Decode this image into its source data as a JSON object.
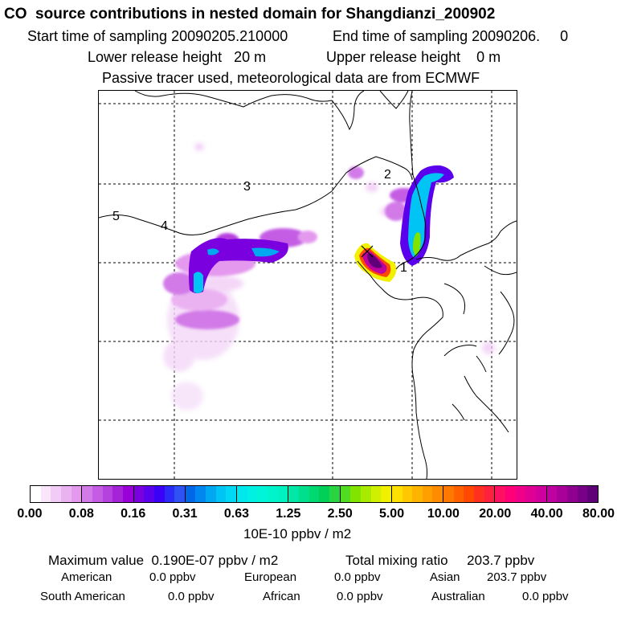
{
  "header": {
    "title": "CO  source contributions in nested domain for Shangdianzi_200902",
    "start_sampling": "Start time of sampling 20090205.210000",
    "end_sampling": "End time of sampling 20090206.     0",
    "lower_release": "Lower release height   20 m",
    "upper_release": "Upper release height    0 m",
    "tracer_note": "Passive tracer used, meteorological data are from ECMWF"
  },
  "map": {
    "region_labels": [
      "1",
      "2",
      "3",
      "4",
      "5"
    ],
    "receptor_marker": "x"
  },
  "colorbar": {
    "ticks": [
      "0.00",
      "0.08",
      "0.16",
      "0.31",
      "0.63",
      "1.25",
      "2.50",
      "5.00",
      "10.00",
      "20.00",
      "40.00",
      "80.00"
    ],
    "unit_label": "10E-10 ppbv / m2",
    "groups": [
      [
        "#ffffff",
        "#f9e6fa",
        "#f2ccf6",
        "#ebb2f2",
        "#e499ee"
      ],
      [
        "#d27ae8",
        "#c45de4",
        "#b541de",
        "#a524da",
        "#9b00d8"
      ],
      [
        "#7a00e0",
        "#5a00ec",
        "#3b00f6",
        "#2a2bf6",
        "#2e52f4"
      ],
      [
        "#0068e8",
        "#0088f0",
        "#00a8f2",
        "#00c4f4",
        "#00d8f4"
      ],
      [
        "#00e8ee",
        "#00f0e4",
        "#00f4d8",
        "#00f4cc",
        "#00f2c0"
      ],
      [
        "#00e8a8",
        "#00e08c",
        "#00d870",
        "#00d058",
        "#28d440"
      ],
      [
        "#50dc20",
        "#80e400",
        "#a8ea00",
        "#cff000",
        "#f0f000"
      ],
      [
        "#ffe000",
        "#ffc800",
        "#ffb400",
        "#ffa000",
        "#ff8c00"
      ],
      [
        "#ff7800",
        "#ff6000",
        "#ff4800",
        "#ff3020",
        "#ff2040"
      ],
      [
        "#ff1060",
        "#ff0078",
        "#f00088",
        "#e00094",
        "#d0009c"
      ],
      [
        "#c000a0",
        "#a80098",
        "#900090",
        "#780088",
        "#600078"
      ]
    ]
  },
  "summary": {
    "max_value": "Maximum value  0.190E-07 ppbv / m2",
    "total_mixing": "Total mixing ratio     203.7 ppbv",
    "american": "American",
    "american_val": "0.0 ppbv",
    "european": "European",
    "european_val": "0.0 ppbv",
    "asian": "Asian",
    "asian_val": "203.7 ppbv",
    "south_american": "South American",
    "south_american_val": "0.0 ppbv",
    "african": "African",
    "african_val": "0.0 ppbv",
    "australian": "Australian",
    "australian_val": "0.0 ppbv"
  }
}
